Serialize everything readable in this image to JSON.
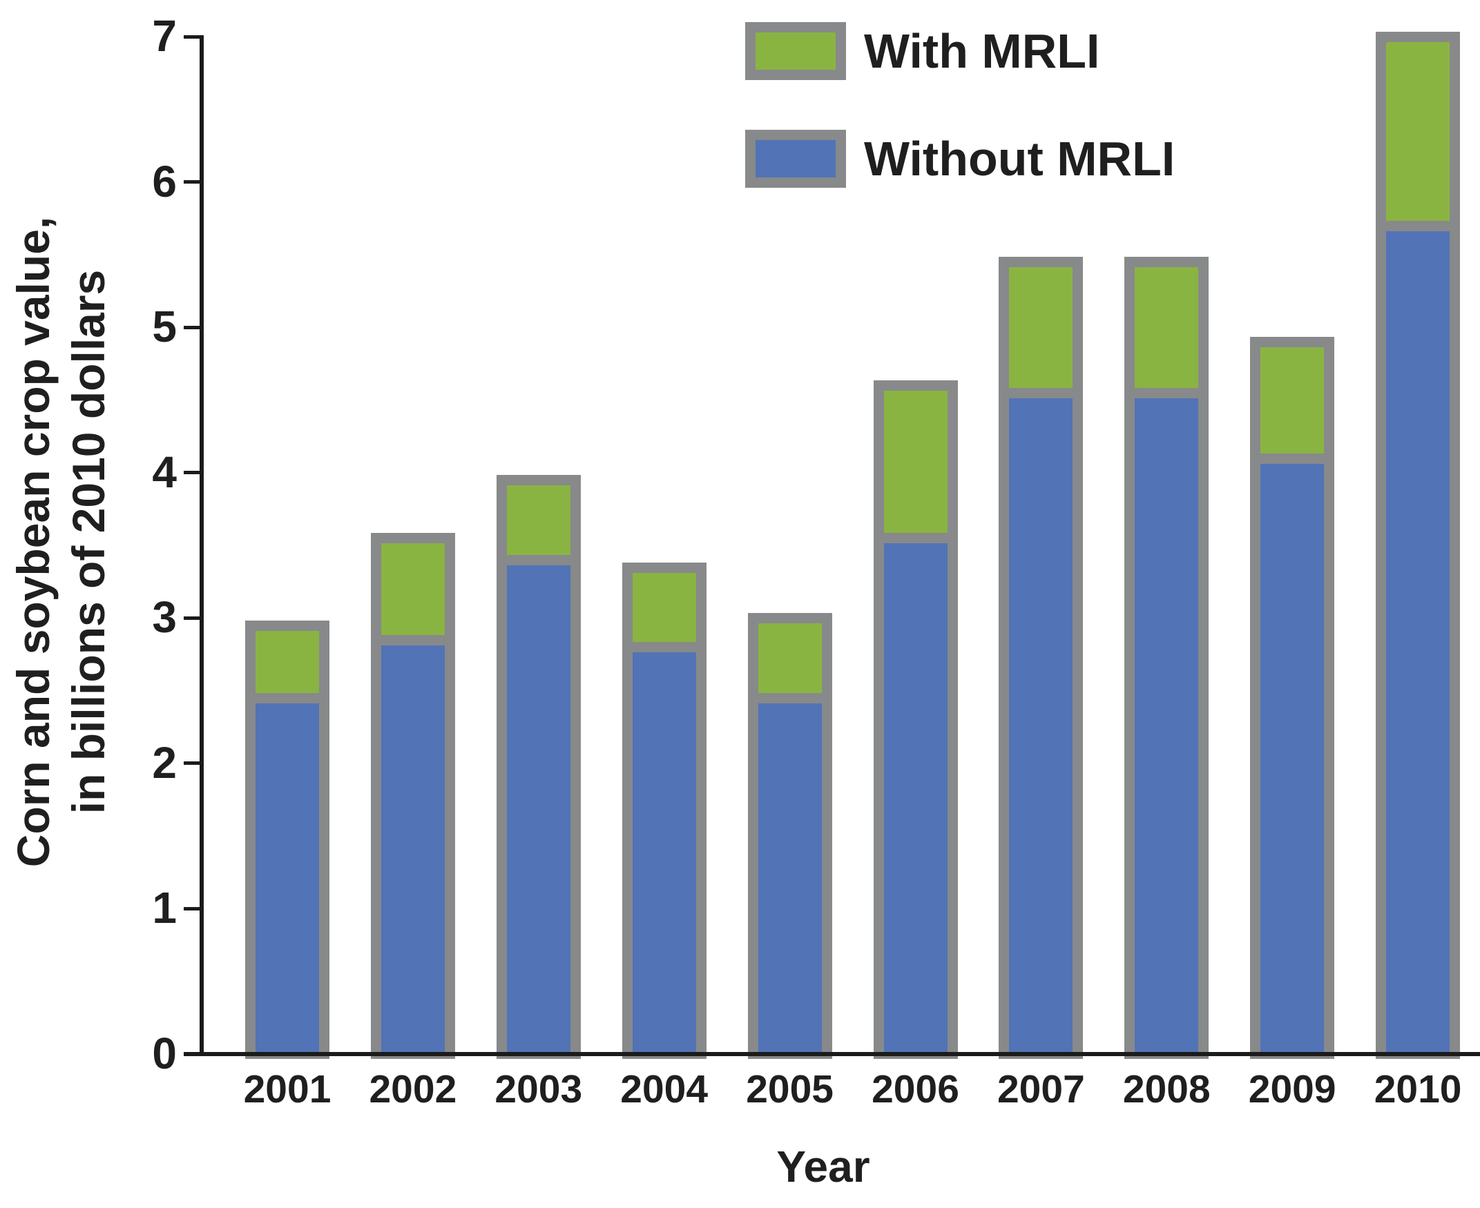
{
  "figure": {
    "y_axis": {
      "label_line1": "Corn and soybean crop value,",
      "label_line2": "in billions of 2010 dollars",
      "tick_values": [
        0,
        1,
        2,
        3,
        4,
        5,
        6,
        7
      ]
    },
    "x_axis": {
      "label": "Year"
    },
    "legend": {
      "items": [
        {
          "label": "With MRLI",
          "color": "#8AB442"
        },
        {
          "label": "Without MRLI",
          "color": "#5273B5"
        }
      ]
    },
    "colors": {
      "with_mrli_green": "#8AB442",
      "without_mrli_blue": "#5273B5",
      "bar_outline_gray": "#87898B",
      "axis_black": "#1b1b1b"
    }
  },
  "chart_data": {
    "type": "bar",
    "stacked": true,
    "title": "",
    "xlabel": "Year",
    "ylabel": "Corn and soybean crop value, in billions of 2010 dollars",
    "ylim": [
      0,
      7
    ],
    "grid": false,
    "legend_position": "top-center",
    "categories": [
      "2001",
      "2002",
      "2003",
      "2004",
      "2005",
      "2006",
      "2007",
      "2008",
      "2009",
      "2010"
    ],
    "series": [
      {
        "name": "Without MRLI",
        "color": "#5273B5",
        "values": [
          2.45,
          2.85,
          3.4,
          2.8,
          2.45,
          3.55,
          4.55,
          4.55,
          4.1,
          5.7
        ]
      },
      {
        "name": "With MRLI",
        "color": "#8AB442",
        "values": [
          0.5,
          0.7,
          0.55,
          0.55,
          0.55,
          1.05,
          0.9,
          0.9,
          0.8,
          1.3
        ]
      }
    ],
    "totals": [
      2.95,
      3.55,
      3.95,
      3.35,
      3.0,
      4.6,
      5.45,
      5.45,
      4.9,
      7.0
    ]
  }
}
